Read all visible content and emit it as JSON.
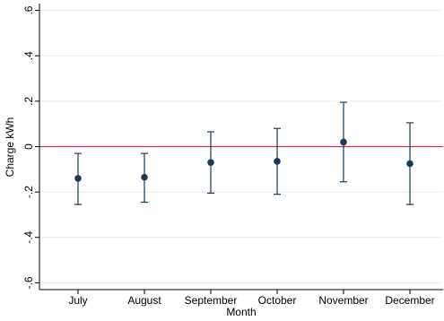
{
  "chart_data": {
    "type": "scatter",
    "subtype": "coefficient-plot-with-error-bars",
    "title": "",
    "xlabel": "Month",
    "ylabel": "Charge kWh",
    "categories": [
      "July",
      "August",
      "September",
      "October",
      "November",
      "December"
    ],
    "estimates": [
      -0.14,
      -0.135,
      -0.07,
      -0.065,
      0.02,
      -0.075
    ],
    "ci_lower": [
      -0.255,
      -0.245,
      -0.205,
      -0.21,
      -0.155,
      -0.255
    ],
    "ci_upper": [
      -0.03,
      -0.03,
      0.065,
      0.08,
      0.195,
      0.105
    ],
    "ylim": [
      -0.63,
      0.63
    ],
    "yticks": [
      -0.6,
      -0.4,
      -0.2,
      0,
      0.2,
      0.4,
      0.6
    ],
    "ytick_labels": [
      "-.6",
      "-.4",
      "-.2",
      "0",
      ".2",
      ".4",
      ".6"
    ],
    "reference_line": {
      "y": 0,
      "color": "#c0365a"
    },
    "grid": true,
    "colors": {
      "marker": "#1a3a5c",
      "errorbar": "#1a3a5c",
      "grid": "#e8ecef",
      "axis": "#000000"
    }
  }
}
